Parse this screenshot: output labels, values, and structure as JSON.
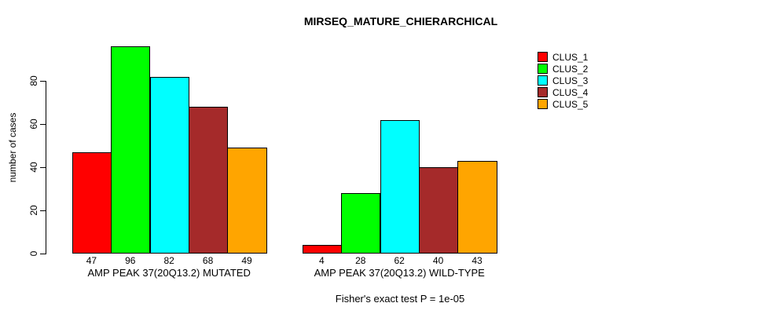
{
  "chart_data": {
    "type": "bar",
    "title": "MIRSEQ_MATURE_CHIERARCHICAL",
    "ylabel": "number of cases",
    "xlabel": "",
    "annotation": "Fisher's exact test P = 1e-05",
    "yticks": [
      0,
      20,
      40,
      60,
      80
    ],
    "ylim": [
      0,
      96
    ],
    "grid": false,
    "legend_position": "top-right",
    "series": [
      {
        "name": "CLUS_1",
        "color": "#FF0000"
      },
      {
        "name": "CLUS_2",
        "color": "#00FF00"
      },
      {
        "name": "CLUS_3",
        "color": "#00FFFF"
      },
      {
        "name": "CLUS_4",
        "color": "#A52A2A"
      },
      {
        "name": "CLUS_5",
        "color": "#FFA500"
      }
    ],
    "groups": [
      {
        "label": "AMP PEAK 37(20Q13.2) MUTATED",
        "values": [
          47,
          96,
          82,
          68,
          49
        ]
      },
      {
        "label": "AMP PEAK 37(20Q13.2) WILD-TYPE",
        "values": [
          4,
          28,
          62,
          40,
          43
        ]
      }
    ]
  }
}
